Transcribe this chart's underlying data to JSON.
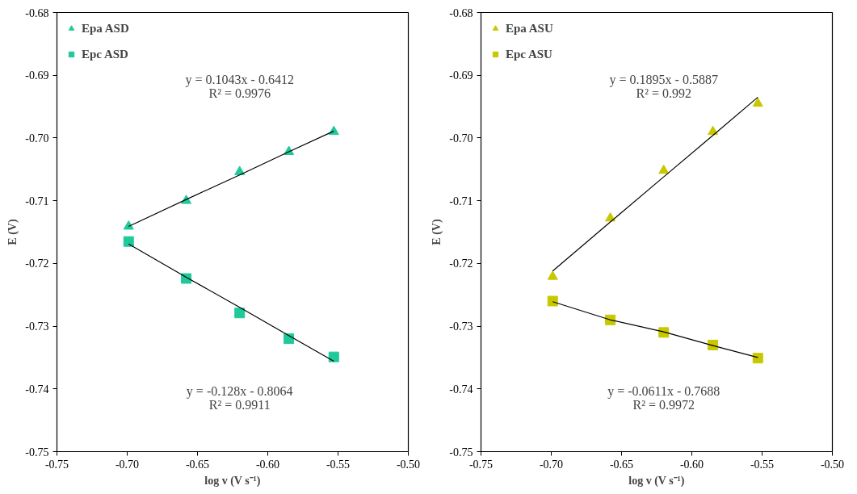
{
  "chart_data": [
    {
      "type": "scatter",
      "xlabel": "log v (V s⁻¹)",
      "ylabel": "E (V)",
      "xlim": [
        -0.75,
        -0.5
      ],
      "ylim": [
        -0.75,
        -0.68
      ],
      "xticks": [
        {
          "value": -0.75,
          "label": "-0.75"
        },
        {
          "value": -0.7,
          "label": "-0.70"
        },
        {
          "value": -0.65,
          "label": "-0.65"
        },
        {
          "value": -0.6,
          "label": "-0.60"
        },
        {
          "value": -0.55,
          "label": "-0.55"
        },
        {
          "value": -0.5,
          "label": "-0.50"
        }
      ],
      "yticks": [
        {
          "value": -0.75,
          "label": "-0.75"
        },
        {
          "value": -0.74,
          "label": "-0.74"
        },
        {
          "value": -0.73,
          "label": "-0.73"
        },
        {
          "value": -0.72,
          "label": "-0.72"
        },
        {
          "value": -0.71,
          "label": "-0.71"
        },
        {
          "value": -0.7,
          "label": "-0.70"
        },
        {
          "value": -0.69,
          "label": "-0.69"
        },
        {
          "value": -0.68,
          "label": "-0.68"
        }
      ],
      "x": [
        -0.699,
        -0.658,
        -0.62,
        -0.585,
        -0.553
      ],
      "legend": "top left",
      "grid": false,
      "series": [
        {
          "name": "Epa ASD",
          "color": "#1fc99a",
          "marker": "triangle",
          "values": [
            -0.7141,
            -0.71,
            -0.7054,
            -0.7022,
            -0.699
          ]
        },
        {
          "name": "Epc ASD",
          "color": "#1fc99a",
          "marker": "square",
          "values": [
            -0.7165,
            -0.7224,
            -0.7279,
            -0.732,
            -0.7349
          ]
        },
        {
          "type": "line",
          "color": "#000000",
          "values": [
            -0.7141,
            -0.7098,
            -0.7059,
            -0.7022,
            -0.6989
          ]
        },
        {
          "type": "line",
          "color": "#000000",
          "values": [
            -0.7169,
            -0.7222,
            -0.727,
            -0.7315,
            -0.7356
          ]
        }
      ],
      "annotations": [
        "y = 0.1043x - 0.6412",
        "R² = 0.9976",
        "y = -0.128x - 0.8064",
        "R² = 0.9911"
      ]
    },
    {
      "type": "scatter",
      "xlabel": "log v (V s⁻¹)",
      "ylabel": "E (V)",
      "xlim": [
        -0.75,
        -0.5
      ],
      "ylim": [
        -0.75,
        -0.68
      ],
      "xticks": [
        {
          "value": -0.75,
          "label": "-0.75"
        },
        {
          "value": -0.7,
          "label": "-0.70"
        },
        {
          "value": -0.65,
          "label": "-0.65"
        },
        {
          "value": -0.6,
          "label": "-0.60"
        },
        {
          "value": -0.55,
          "label": "-0.55"
        },
        {
          "value": -0.5,
          "label": "-0.50"
        }
      ],
      "yticks": [
        {
          "value": -0.75,
          "label": "-0.75"
        },
        {
          "value": -0.74,
          "label": "-0.74"
        },
        {
          "value": -0.73,
          "label": "-0.73"
        },
        {
          "value": -0.72,
          "label": "-0.72"
        },
        {
          "value": -0.71,
          "label": "-0.71"
        },
        {
          "value": -0.7,
          "label": "-0.70"
        },
        {
          "value": -0.69,
          "label": "-0.69"
        },
        {
          "value": -0.68,
          "label": "-0.68"
        }
      ],
      "x": [
        -0.699,
        -0.658,
        -0.62,
        -0.585,
        -0.553
      ],
      "legend": "top left",
      "grid": false,
      "series": [
        {
          "name": "Epa ASU",
          "color": "#c8c800",
          "marker": "triangle",
          "values": [
            -0.7221,
            -0.7128,
            -0.7052,
            -0.699,
            -0.6945
          ]
        },
        {
          "name": "Epc ASU",
          "color": "#c8c800",
          "marker": "square",
          "values": [
            -0.726,
            -0.729,
            -0.731,
            -0.733,
            -0.7351
          ]
        },
        {
          "type": "line",
          "color": "#000000",
          "values": [
            -0.7212,
            -0.7134,
            -0.7062,
            -0.6996,
            -0.6935
          ]
        },
        {
          "type": "line",
          "color": "#000000",
          "values": [
            -0.7261,
            -0.729,
            -0.7309,
            -0.7331,
            -0.735
          ]
        }
      ],
      "annotations": [
        "y = 0.1895x - 0.5887",
        "R² = 0.992",
        "y = -0.0611x - 0.7688",
        "R² = 0.9972"
      ]
    }
  ]
}
